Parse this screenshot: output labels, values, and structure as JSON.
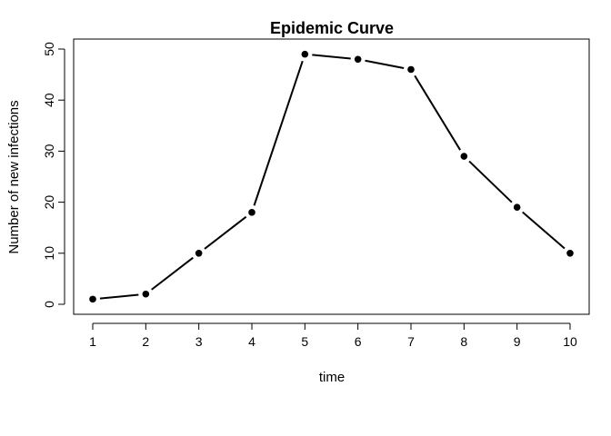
{
  "chart_data": {
    "type": "line",
    "title": "Epidemic Curve",
    "xlabel": "time",
    "ylabel": "Number of new infections",
    "x": [
      1,
      2,
      3,
      4,
      5,
      6,
      7,
      8,
      9,
      10
    ],
    "series": [
      {
        "values": [
          1,
          2,
          10,
          18,
          49,
          48,
          46,
          29,
          19,
          10
        ]
      }
    ],
    "xticks": [
      "1",
      "2",
      "3",
      "4",
      "5",
      "6",
      "7",
      "8",
      "9",
      "10"
    ],
    "yticks": [
      "0",
      "10",
      "20",
      "30",
      "40",
      "50"
    ],
    "xlim": [
      0.64,
      10.36
    ],
    "ylim": [
      -1.96,
      51.96
    ],
    "grid": false,
    "legend": "none",
    "line_color": "#000000"
  }
}
